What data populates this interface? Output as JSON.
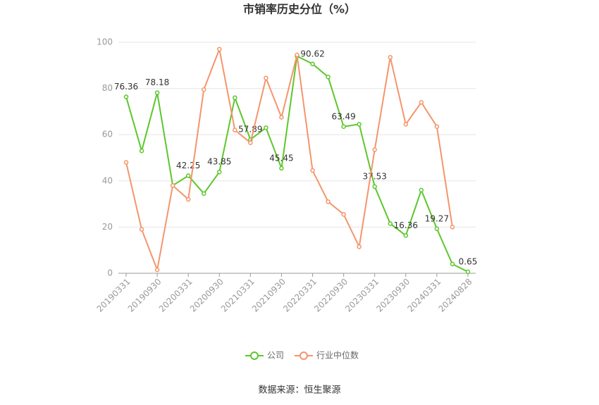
{
  "chart_data": {
    "type": "line",
    "title": "市销率历史分位（%）",
    "categories": [
      "20190331",
      null,
      "20190930",
      null,
      "20200331",
      null,
      "20200930",
      null,
      "20210331",
      null,
      "20210930",
      null,
      "20220331",
      null,
      "20220930",
      null,
      "20230331",
      null,
      "20230930",
      null,
      "20240331",
      null,
      "20240828"
    ],
    "series": [
      {
        "name": "公司",
        "color": "#5cc72c",
        "values": [
          76.36,
          53,
          78.18,
          38,
          42.25,
          34.5,
          43.85,
          76,
          57.89,
          63,
          45.45,
          94,
          90.62,
          85,
          63.49,
          64.5,
          37.53,
          21.5,
          16.36,
          36,
          19.27,
          4,
          0.65
        ],
        "value_labels": [
          "76.36",
          null,
          "78.18",
          null,
          "42.25",
          null,
          "43.85",
          null,
          "57.89",
          null,
          "45.45",
          null,
          "90.62",
          null,
          "63.49",
          null,
          "37.53",
          null,
          "16.36",
          null,
          "19.27",
          null,
          "0.65"
        ]
      },
      {
        "name": "行业中位数",
        "color": "#f4956c",
        "values": [
          48,
          19,
          1.5,
          38,
          32,
          79.5,
          97,
          62,
          56.5,
          84.5,
          67.5,
          94.5,
          44.5,
          31,
          25.5,
          11.5,
          53.5,
          93.5,
          64.5,
          74,
          63.5,
          20,
          null
        ]
      }
    ],
    "ylim": [
      0,
      100
    ],
    "yticks": [
      0,
      20,
      40,
      60,
      80,
      100
    ],
    "grid": true,
    "source": "数据来源：恒生聚源"
  }
}
